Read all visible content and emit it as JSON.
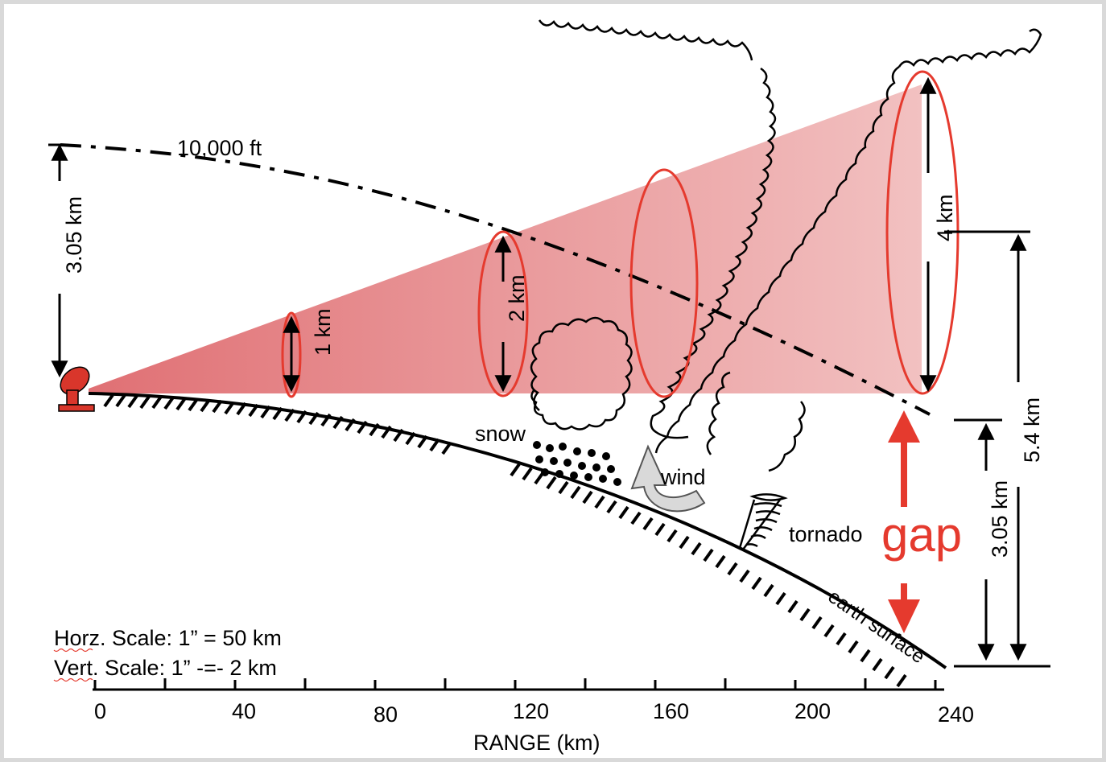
{
  "title_10000": "10,000 ft",
  "dim_left": "3.05 km",
  "beam_1km": "1 km",
  "beam_2km": "2 km",
  "beam_4km": "4 km",
  "label_snow": "snow",
  "label_wind": "wind",
  "label_tornado": "tornado",
  "label_gap": "gap",
  "label_earth": "earth surface",
  "dim_right_54": "5.4 km",
  "dim_right_305": "3.05 km",
  "scale_horz": "Horz. Scale: 1” = 50 km",
  "scale_vert": "Vert. Scale: 1” -=- 2 km",
  "axis_title": "RANGE (km)",
  "axis_ticks": [
    "0",
    "40",
    "80",
    "120",
    "160",
    "200",
    "240"
  ],
  "colors": {
    "beam": "#e8868a",
    "ellipse": "#e53a2e",
    "gap": "#e53a2e",
    "radar": "#d9362b"
  }
}
